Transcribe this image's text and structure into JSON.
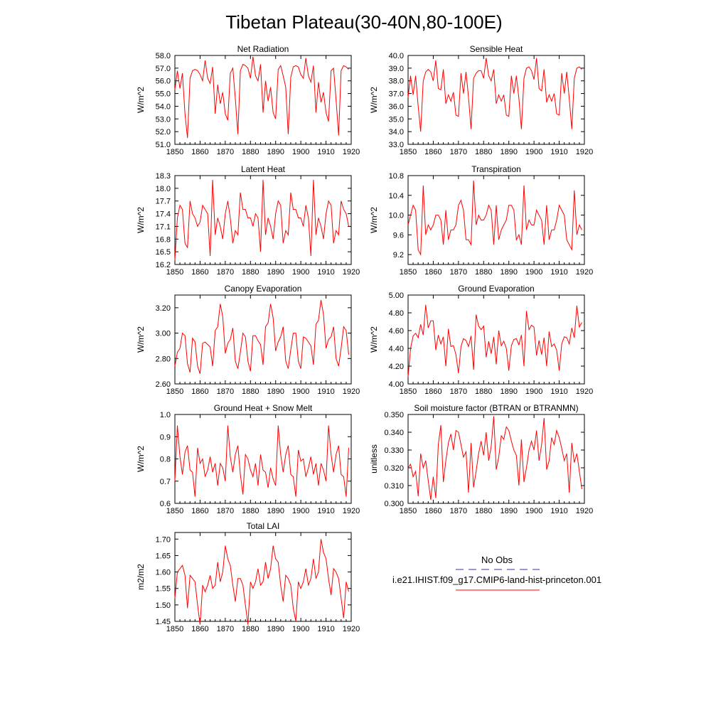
{
  "figure": {
    "title": "Tibetan Plateau(30-40N,80-100E)",
    "series_color": "#ff0000",
    "obs_color": "#3333aa"
  },
  "legend": {
    "obs_label": "No Obs",
    "model_label": "i.e21.IHIST.f09_g17.CMIP6-land-hist-princeton.001"
  },
  "chart_data": [
    {
      "type": "line",
      "title": "Net Radiation",
      "ylabel": "W/m^2",
      "xlim": [
        1850,
        1920
      ],
      "ylim": [
        51.0,
        58.0
      ],
      "xticks": [
        "1850",
        "1860",
        "1870",
        "1880",
        "1890",
        "1900",
        "1910",
        "1920"
      ],
      "yticks": [
        "51.0",
        "52.0",
        "53.0",
        "54.0",
        "55.0",
        "56.0",
        "57.0",
        "58.0"
      ],
      "x_start": 1850,
      "values": [
        55.3,
        56.8,
        55.4,
        56.6,
        53.4,
        51.5,
        56.2,
        56.8,
        56.9,
        56.8,
        56.5,
        56.0,
        57.6,
        56.2,
        55.8,
        57.1,
        53.4,
        55.7,
        54.2,
        55.1,
        53.4,
        52.9,
        56.6,
        57.0,
        54.6,
        51.8,
        56.8,
        57.3,
        57.2,
        57.0,
        56.2,
        57.9,
        56.4,
        56.0,
        57.3,
        53.5,
        56.0,
        54.4,
        55.5,
        53.5,
        53.0,
        56.9,
        57.2,
        56.4,
        55.5,
        51.8,
        56.3,
        57.1,
        57.2,
        57.1,
        56.5,
        56.2,
        57.8,
        56.4,
        55.9,
        57.2,
        53.5,
        55.9,
        54.3,
        55.1,
        53.5,
        52.8,
        56.8,
        57.0,
        54.5,
        51.7,
        56.8,
        57.2,
        57.1,
        56.9
      ]
    },
    {
      "type": "line",
      "title": "Sensible Heat",
      "ylabel": "W/m^2",
      "xlim": [
        1850,
        1920
      ],
      "ylim": [
        33.0,
        40.0
      ],
      "xticks": [
        "1850",
        "1860",
        "1870",
        "1880",
        "1890",
        "1900",
        "1910",
        "1920"
      ],
      "yticks": [
        "33.0",
        "34.0",
        "35.0",
        "36.0",
        "37.0",
        "38.0",
        "39.0",
        "40.0"
      ],
      "x_start": 1850,
      "values": [
        36.7,
        38.4,
        36.9,
        38.4,
        36.0,
        34.0,
        38.0,
        38.7,
        38.9,
        38.7,
        38.0,
        39.6,
        37.4,
        37.3,
        38.9,
        36.2,
        36.9,
        36.4,
        37.1,
        35.3,
        35.2,
        38.6,
        37.0,
        38.7,
        36.7,
        34.2,
        38.2,
        38.6,
        38.8,
        38.8,
        38.2,
        39.8,
        38.4,
        38.0,
        38.9,
        36.2,
        36.9,
        36.4,
        36.9,
        35.3,
        35.2,
        38.4,
        37.0,
        38.4,
        36.6,
        34.2,
        38.2,
        39.0,
        39.1,
        38.8,
        38.1,
        39.8,
        37.4,
        37.2,
        38.9,
        36.3,
        36.9,
        36.4,
        37.0,
        35.4,
        35.3,
        38.6,
        37.0,
        38.7,
        36.6,
        34.2,
        38.2,
        39.0,
        39.1,
        38.9
      ]
    },
    {
      "type": "line",
      "title": "Latent Heat",
      "ylabel": "W/m^2",
      "xlim": [
        1850,
        1920
      ],
      "ylim": [
        16.2,
        18.3
      ],
      "xticks": [
        "1850",
        "1860",
        "1870",
        "1880",
        "1890",
        "1900",
        "1910",
        "1920"
      ],
      "yticks": [
        "16.2",
        "16.5",
        "16.8",
        "17.1",
        "17.4",
        "17.7",
        "18.0",
        "18.3"
      ],
      "x_start": 1850,
      "values": [
        16.3,
        17.3,
        17.6,
        17.5,
        16.7,
        16.6,
        17.7,
        17.4,
        17.3,
        17.1,
        17.2,
        17.6,
        17.5,
        17.4,
        16.4,
        18.2,
        16.9,
        17.3,
        17.1,
        16.8,
        17.4,
        17.7,
        17.3,
        16.7,
        17.0,
        16.9,
        17.9,
        17.5,
        17.5,
        17.3,
        17.3,
        17.1,
        17.4,
        17.3,
        16.5,
        18.2,
        16.9,
        17.3,
        17.1,
        16.8,
        17.4,
        17.7,
        17.6,
        16.7,
        17.0,
        16.9,
        17.9,
        17.5,
        17.5,
        17.3,
        17.3,
        17.1,
        17.6,
        17.3,
        16.4,
        18.2,
        16.9,
        17.3,
        17.1,
        16.8,
        17.4,
        17.7,
        17.6,
        16.7,
        17.0,
        16.9,
        17.7,
        17.5,
        17.4,
        17.1
      ]
    },
    {
      "type": "line",
      "title": "Transpiration",
      "ylabel": "W/m^2",
      "xlim": [
        1850,
        1920
      ],
      "ylim": [
        9.0,
        10.8
      ],
      "xticks": [
        "1850",
        "1860",
        "1870",
        "1880",
        "1890",
        "1900",
        "1910",
        "1920"
      ],
      "yticks": [
        "9.2",
        "9.6",
        "10.0",
        "10.4",
        "10.8"
      ],
      "x_start": 1850,
      "values": [
        9.8,
        10.0,
        10.2,
        10.1,
        9.3,
        9.2,
        10.6,
        9.6,
        9.8,
        9.7,
        9.8,
        10.0,
        10.0,
        9.9,
        9.4,
        10.1,
        9.5,
        9.7,
        9.7,
        9.8,
        10.2,
        10.3,
        10.1,
        9.5,
        9.5,
        9.4,
        10.7,
        9.8,
        10.0,
        9.9,
        9.9,
        10.0,
        10.2,
        10.1,
        9.4,
        10.2,
        9.5,
        9.7,
        9.8,
        9.9,
        10.2,
        10.2,
        10.1,
        9.5,
        9.6,
        9.4,
        10.6,
        9.7,
        9.9,
        9.8,
        9.8,
        10.1,
        10.0,
        9.9,
        9.4,
        10.2,
        9.5,
        9.7,
        9.7,
        9.9,
        10.2,
        10.1,
        10.0,
        9.5,
        9.4,
        9.3,
        10.5,
        9.6,
        9.8,
        9.7
      ]
    },
    {
      "type": "line",
      "title": "Canopy Evaporation",
      "ylabel": "W/m^2",
      "xlim": [
        1850,
        1920
      ],
      "ylim": [
        2.6,
        3.3
      ],
      "xticks": [
        "1850",
        "1860",
        "1870",
        "1880",
        "1890",
        "1900",
        "1910",
        "1920"
      ],
      "yticks": [
        "2.60",
        "2.80",
        "3.00",
        "3.20"
      ],
      "x_start": 1850,
      "values": [
        2.74,
        2.85,
        2.88,
        3.0,
        2.98,
        2.76,
        2.69,
        2.96,
        2.93,
        2.74,
        2.68,
        2.92,
        2.93,
        2.91,
        2.89,
        2.74,
        3.02,
        3.05,
        3.23,
        3.13,
        2.84,
        2.92,
        2.95,
        3.04,
        2.78,
        2.72,
        2.85,
        3.0,
        2.97,
        2.78,
        2.7,
        2.98,
        2.98,
        2.94,
        2.91,
        2.75,
        3.05,
        3.08,
        3.23,
        3.12,
        2.86,
        2.93,
        2.97,
        3.05,
        2.78,
        2.72,
        2.87,
        3.0,
        3.0,
        2.78,
        2.72,
        2.97,
        2.96,
        2.93,
        2.9,
        2.75,
        3.07,
        3.1,
        3.26,
        3.15,
        2.88,
        2.95,
        2.97,
        3.05,
        2.8,
        2.74,
        2.88,
        3.05,
        3.02,
        2.83
      ]
    },
    {
      "type": "line",
      "title": "Ground Evaporation",
      "ylabel": "W/m^2",
      "xlim": [
        1850,
        1920
      ],
      "ylim": [
        4.0,
        5.0
      ],
      "xticks": [
        "1850",
        "1860",
        "1870",
        "1880",
        "1890",
        "1900",
        "1910",
        "1920"
      ],
      "yticks": [
        "4.00",
        "4.20",
        "4.40",
        "4.60",
        "4.80",
        "5.00"
      ],
      "x_start": 1850,
      "values": [
        4.08,
        4.4,
        4.54,
        4.57,
        4.52,
        4.67,
        4.55,
        4.89,
        4.63,
        4.71,
        4.71,
        4.38,
        4.55,
        4.45,
        4.53,
        4.2,
        4.62,
        4.42,
        4.43,
        4.33,
        4.12,
        4.42,
        4.51,
        4.49,
        4.42,
        4.54,
        4.16,
        4.78,
        4.65,
        4.61,
        4.65,
        4.3,
        4.48,
        4.34,
        4.53,
        4.22,
        4.6,
        4.43,
        4.48,
        4.4,
        4.15,
        4.43,
        4.5,
        4.51,
        4.44,
        4.55,
        4.2,
        4.82,
        4.61,
        4.66,
        4.64,
        4.32,
        4.49,
        4.33,
        4.52,
        4.2,
        4.59,
        4.42,
        4.45,
        4.38,
        4.15,
        4.45,
        4.53,
        4.52,
        4.45,
        4.63,
        4.52,
        4.88,
        4.64,
        4.69
      ]
    },
    {
      "type": "line",
      "title": "Ground Heat + Snow Melt",
      "ylabel": "W/m^2",
      "xlim": [
        1850,
        1920
      ],
      "ylim": [
        0.6,
        1.0
      ],
      "xticks": [
        "1850",
        "1860",
        "1870",
        "1880",
        "1890",
        "1900",
        "1910",
        "1920"
      ],
      "yticks": [
        "0.6",
        "0.7",
        "0.8",
        "0.9",
        "1.0"
      ],
      "x_start": 1850,
      "values": [
        0.7,
        0.95,
        0.81,
        0.73,
        0.83,
        0.86,
        0.75,
        0.74,
        0.63,
        0.85,
        0.78,
        0.8,
        0.72,
        0.75,
        0.81,
        0.74,
        0.78,
        0.68,
        0.78,
        0.76,
        0.7,
        0.95,
        0.81,
        0.74,
        0.82,
        0.86,
        0.73,
        0.64,
        0.82,
        0.8,
        0.75,
        0.72,
        0.78,
        0.68,
        0.82,
        0.75,
        0.74,
        0.67,
        0.76,
        0.71,
        0.68,
        0.95,
        0.82,
        0.74,
        0.82,
        0.86,
        0.73,
        0.72,
        0.63,
        0.84,
        0.79,
        0.8,
        0.72,
        0.76,
        0.81,
        0.73,
        0.78,
        0.68,
        0.78,
        0.75,
        0.7,
        0.95,
        0.82,
        0.74,
        0.82,
        0.86,
        0.73,
        0.72,
        0.63,
        0.85
      ]
    },
    {
      "type": "line",
      "title": "Soil moisture factor (BTRAN or BTRANMN)",
      "ylabel": "unitless",
      "xlim": [
        1850,
        1920
      ],
      "ylim": [
        0.3,
        0.35
      ],
      "xticks": [
        "1850",
        "1860",
        "1870",
        "1880",
        "1890",
        "1900",
        "1910",
        "1920"
      ],
      "yticks": [
        "0.300",
        "0.310",
        "0.320",
        "0.330",
        "0.340",
        "0.350"
      ],
      "x_start": 1850,
      "values": [
        0.32,
        0.322,
        0.315,
        0.318,
        0.304,
        0.328,
        0.32,
        0.324,
        0.313,
        0.302,
        0.315,
        0.303,
        0.333,
        0.344,
        0.312,
        0.324,
        0.334,
        0.339,
        0.33,
        0.341,
        0.34,
        0.333,
        0.326,
        0.329,
        0.306,
        0.334,
        0.309,
        0.318,
        0.328,
        0.335,
        0.327,
        0.34,
        0.324,
        0.332,
        0.349,
        0.319,
        0.326,
        0.338,
        0.336,
        0.343,
        0.341,
        0.335,
        0.33,
        0.327,
        0.31,
        0.336,
        0.312,
        0.32,
        0.33,
        0.335,
        0.33,
        0.341,
        0.324,
        0.333,
        0.348,
        0.319,
        0.324,
        0.337,
        0.333,
        0.341,
        0.337,
        0.331,
        0.324,
        0.328,
        0.306,
        0.334,
        0.323,
        0.328,
        0.318,
        0.308
      ]
    },
    {
      "type": "line",
      "title": "Total LAI",
      "ylabel": "m2/m2",
      "xlim": [
        1850,
        1920
      ],
      "ylim": [
        1.45,
        1.72
      ],
      "xticks": [
        "1850",
        "1860",
        "1870",
        "1880",
        "1890",
        "1900",
        "1910",
        "1920"
      ],
      "yticks": [
        "1.45",
        "1.50",
        "1.55",
        "1.60",
        "1.65",
        "1.70"
      ],
      "x_start": 1850,
      "values": [
        1.52,
        1.6,
        1.61,
        1.62,
        1.59,
        1.49,
        1.59,
        1.58,
        1.57,
        1.5,
        1.44,
        1.56,
        1.54,
        1.56,
        1.59,
        1.55,
        1.56,
        1.63,
        1.57,
        1.6,
        1.68,
        1.64,
        1.62,
        1.56,
        1.51,
        1.58,
        1.58,
        1.56,
        1.5,
        1.44,
        1.57,
        1.55,
        1.57,
        1.61,
        1.56,
        1.57,
        1.63,
        1.58,
        1.61,
        1.68,
        1.64,
        1.63,
        1.56,
        1.51,
        1.59,
        1.58,
        1.56,
        1.49,
        1.45,
        1.57,
        1.55,
        1.57,
        1.61,
        1.56,
        1.58,
        1.64,
        1.58,
        1.6,
        1.7,
        1.66,
        1.64,
        1.58,
        1.53,
        1.61,
        1.6,
        1.58,
        1.52,
        1.46,
        1.57,
        1.54
      ]
    }
  ]
}
